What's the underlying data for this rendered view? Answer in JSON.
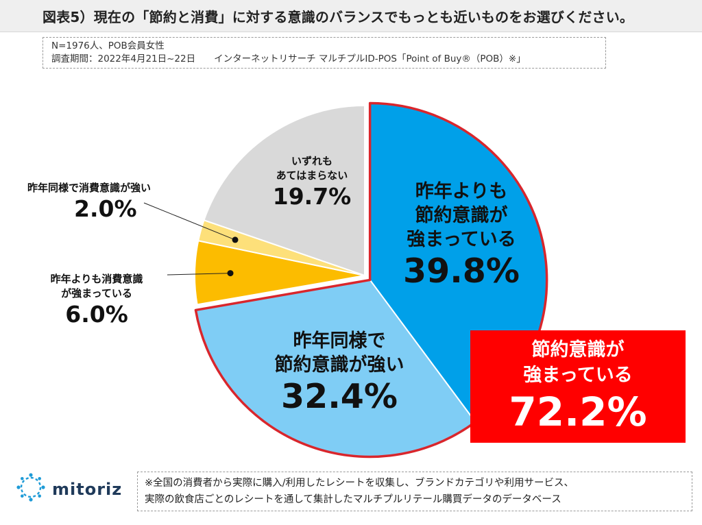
{
  "title": "図表5）現在の「節約と消費」に対する意識のバランスでもっとも近いものをお選びください。",
  "note": {
    "line1": "N=1976人、POB会員女性",
    "line2": "調査期間：2022年4月21日~22日　　インターネットリサーチ マルチプルID-POS「Point of Buy®（POB）※」"
  },
  "chart_data": {
    "type": "pie",
    "slices": [
      {
        "label": "昨年よりも節約意識が強まっている",
        "value": 39.8,
        "display": "39.8%",
        "color": "#00a0e9"
      },
      {
        "label": "昨年同様で節約意識が強い",
        "value": 32.4,
        "display": "32.4%",
        "color": "#7fcdf5"
      },
      {
        "label": "昨年よりも消費意識が強まっている",
        "value": 6.0,
        "display": "6.0%",
        "color": "#fcbc00"
      },
      {
        "label": "昨年同様で消費意識が強い",
        "value": 2.0,
        "display": "2.0%",
        "color": "#fde07a"
      },
      {
        "label": "いずれもあてはまらない",
        "value": 19.7,
        "display": "19.7%",
        "color": "#d9d9d9"
      }
    ],
    "labels": {
      "s1": {
        "line1": "昨年よりも",
        "line2": "節約意識が",
        "line3": "強まっている",
        "value": "39.8%"
      },
      "s2": {
        "line1": "昨年同様で",
        "line2": "節約意識が強い",
        "value": "32.4%"
      },
      "s3": {
        "line1": "昨年よりも消費意識",
        "line2": "が強まっている",
        "value": "6.0%"
      },
      "s4": {
        "line1": "昨年同様で消費意識が強い",
        "value": "2.0%"
      },
      "s5": {
        "line1": "いずれも",
        "line2": "あてはまらない",
        "value": "19.7%"
      }
    },
    "total": {
      "line1": "節約意識が",
      "line2": "強まっている",
      "value": "72.2%"
    },
    "highlight_color": "#d9262c"
  },
  "logo": {
    "text": "mitoriz"
  },
  "footnote": {
    "line1": "※全国の消費者から実際に購入/利用したレシートを収集し、ブランドカテゴリや利用サービス、",
    "line2": "実際の飲食店ごとのレシートを通して集計したマルチプルリテール購買データのデータベース"
  }
}
